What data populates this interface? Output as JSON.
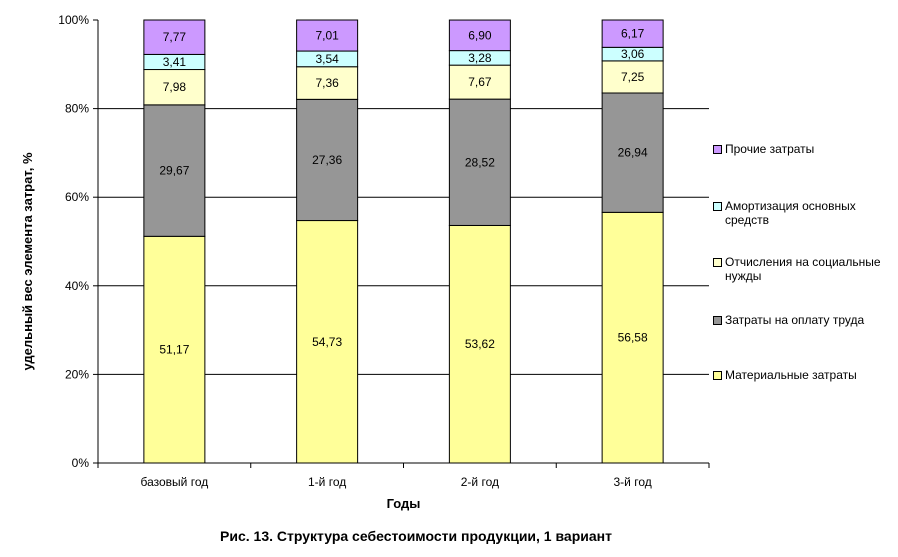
{
  "chart_data": {
    "type": "bar",
    "stacked": true,
    "percent": true,
    "categories": [
      "базовый год",
      "1-й год",
      "2-й год",
      "3-й год"
    ],
    "series": [
      {
        "name": "Материальные затраты",
        "color": "#ffff99",
        "values": [
          51.17,
          54.73,
          53.62,
          56.58
        ]
      },
      {
        "name": "Затраты на оплату труда",
        "color": "#969696",
        "values": [
          29.67,
          27.36,
          28.52,
          26.94
        ]
      },
      {
        "name": "Отчисления на социальные нужды",
        "color": "#ffffcc",
        "values": [
          7.98,
          7.36,
          7.67,
          7.25
        ]
      },
      {
        "name": "Амортизация основных средств",
        "color": "#ccffff",
        "values": [
          3.41,
          3.54,
          3.28,
          3.06
        ]
      },
      {
        "name": "Прочие затраты",
        "color": "#cc99ff",
        "values": [
          7.77,
          7.01,
          6.9,
          6.17
        ]
      }
    ],
    "value_labels": [
      [
        "51,17",
        "54,73",
        "53,62",
        "56,58"
      ],
      [
        "29,67",
        "27,36",
        "28,52",
        "26,94"
      ],
      [
        "7,98",
        "7,36",
        "7,67",
        "7,25"
      ],
      [
        "3,41",
        "3,54",
        "3,28",
        "3,06"
      ],
      [
        "7,77",
        "7,01",
        "6,90",
        "6,17"
      ]
    ],
    "ylim": [
      0,
      100
    ],
    "yticks": [
      0,
      20,
      40,
      60,
      80,
      100
    ],
    "ytick_labels": [
      "0%",
      "20%",
      "40%",
      "60%",
      "80%",
      "100%"
    ],
    "xlabel": "Годы",
    "ylabel": "удельный вес элемента затрат, %",
    "grid": "horizontal",
    "legend_position": "right"
  },
  "caption": "Рис. 13. Структура себестоимости продукции, 1 вариант",
  "legend_order": [
    4,
    3,
    2,
    1,
    0
  ]
}
